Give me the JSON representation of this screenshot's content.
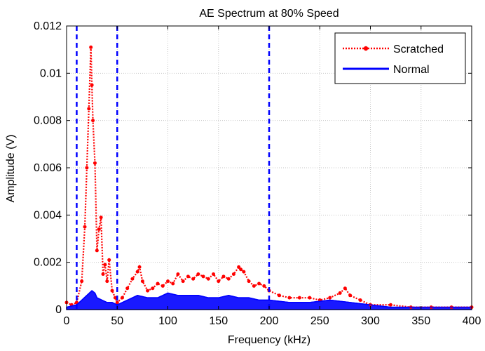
{
  "chart_data": {
    "type": "line",
    "title": "AE Spectrum at 80% Speed",
    "xlabel": "Frequency (kHz)",
    "ylabel": "Amplitude (V)",
    "xlim": [
      0,
      400
    ],
    "ylim": [
      0,
      0.012
    ],
    "xticks": [
      0,
      50,
      100,
      150,
      200,
      250,
      300,
      350,
      400
    ],
    "yticks": [
      0,
      0.002,
      0.004,
      0.006,
      0.008,
      0.01,
      0.012
    ],
    "xtick_labels": [
      "0",
      "50",
      "100",
      "150",
      "200",
      "250",
      "300",
      "350",
      "400"
    ],
    "ytick_labels": [
      "0",
      "0.002",
      "0.004",
      "0.006",
      "0.008",
      "0.01",
      "0.012"
    ],
    "grid": true,
    "legend_position": "top-right",
    "vertical_markers": [
      10,
      50,
      200
    ],
    "series": [
      {
        "name": "Scratched",
        "style": "dotted-marker",
        "color": "#ff0000",
        "x": [
          0,
          5,
          10,
          15,
          18,
          20,
          22,
          24,
          25,
          26,
          28,
          30,
          32,
          34,
          36,
          38,
          40,
          42,
          45,
          48,
          50,
          55,
          60,
          65,
          70,
          72,
          75,
          80,
          85,
          90,
          95,
          100,
          105,
          110,
          115,
          120,
          125,
          130,
          135,
          140,
          145,
          150,
          155,
          160,
          165,
          170,
          172,
          175,
          180,
          185,
          190,
          195,
          200,
          210,
          220,
          230,
          240,
          250,
          260,
          270,
          275,
          280,
          290,
          300,
          320,
          340,
          360,
          380,
          400
        ],
        "y": [
          0.0003,
          0.0002,
          0.0003,
          0.0012,
          0.0035,
          0.006,
          0.0085,
          0.0111,
          0.0095,
          0.008,
          0.0062,
          0.0025,
          0.0034,
          0.0039,
          0.0015,
          0.0019,
          0.0012,
          0.0021,
          0.0008,
          0.0005,
          0.0003,
          0.0005,
          0.0009,
          0.0013,
          0.0016,
          0.0018,
          0.0012,
          0.0008,
          0.0009,
          0.0011,
          0.001,
          0.0012,
          0.0011,
          0.0015,
          0.0012,
          0.0014,
          0.0013,
          0.0015,
          0.0014,
          0.0013,
          0.0015,
          0.0012,
          0.0014,
          0.0013,
          0.0015,
          0.0018,
          0.0017,
          0.0016,
          0.0012,
          0.001,
          0.0011,
          0.001,
          0.0008,
          0.0006,
          0.0005,
          0.0005,
          0.0005,
          0.0004,
          0.0005,
          0.0007,
          0.0009,
          0.0006,
          0.0004,
          0.0002,
          0.0002,
          0.0001,
          0.0001,
          0.0001,
          0.0001
        ]
      },
      {
        "name": "Normal",
        "style": "solid",
        "color": "#0000ff",
        "x": [
          0,
          10,
          15,
          20,
          25,
          28,
          30,
          35,
          40,
          45,
          50,
          60,
          70,
          80,
          90,
          100,
          110,
          120,
          130,
          140,
          150,
          160,
          170,
          180,
          190,
          200,
          220,
          240,
          260,
          280,
          300,
          320,
          340,
          360,
          380,
          400
        ],
        "y": [
          0.0001,
          0.0002,
          0.0004,
          0.0006,
          0.0008,
          0.0007,
          0.0005,
          0.0004,
          0.0003,
          0.0003,
          0.0002,
          0.0004,
          0.0006,
          0.0005,
          0.0005,
          0.0007,
          0.0006,
          0.0006,
          0.0006,
          0.0005,
          0.0005,
          0.0006,
          0.0005,
          0.0005,
          0.0004,
          0.0004,
          0.0003,
          0.0003,
          0.0004,
          0.0003,
          0.0002,
          0.0001,
          0.0001,
          0.0001,
          0.0001,
          0.0001
        ]
      }
    ]
  }
}
